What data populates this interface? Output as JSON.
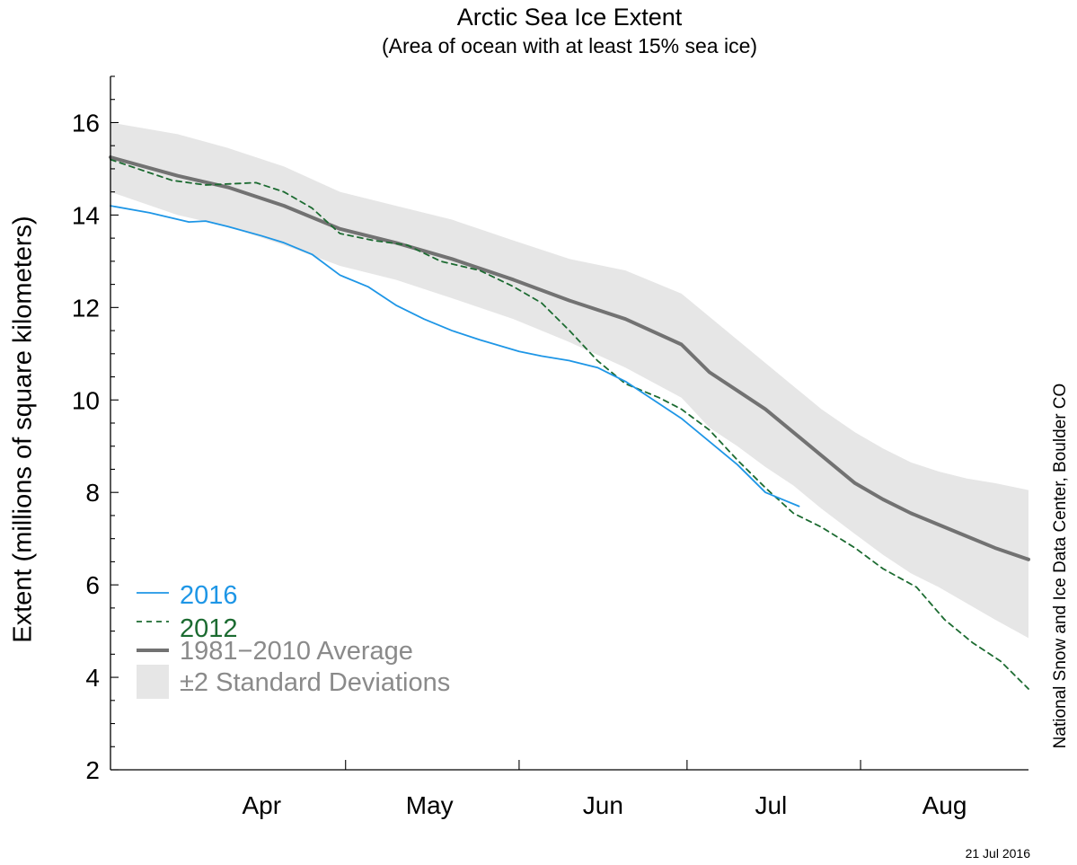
{
  "chart_data": {
    "type": "line",
    "title": "Arctic Sea Ice Extent",
    "subtitle": "(Area of ocean with at least 15% sea ice)",
    "ylabel": "Extent (millions of square kilometers)",
    "xlabel": "",
    "ylim": [
      2,
      17
    ],
    "y_ticks": [
      2,
      4,
      6,
      8,
      10,
      12,
      14,
      16
    ],
    "x_start": "2016-03-20",
    "x_end": "2016-08-31",
    "month_labels": [
      {
        "label": "Apr",
        "date": "2016-04-16"
      },
      {
        "label": "May",
        "date": "2016-05-16"
      },
      {
        "label": "Jun",
        "date": "2016-06-16"
      },
      {
        "label": "Jul",
        "date": "2016-07-16"
      },
      {
        "label": "Aug",
        "date": "2016-08-16"
      }
    ],
    "month_boundaries": [
      "2016-05-01",
      "2016-06-01",
      "2016-07-01",
      "2016-08-01"
    ],
    "grid": false,
    "legend_position": "bottom-left",
    "series": [
      {
        "name": "2016",
        "style": "solid",
        "color": "#1e96e6",
        "x": [
          "2016-03-20",
          "2016-03-27",
          "2016-04-03",
          "2016-04-06",
          "2016-04-10",
          "2016-04-16",
          "2016-04-20",
          "2016-04-25",
          "2016-04-30",
          "2016-05-05",
          "2016-05-10",
          "2016-05-15",
          "2016-05-20",
          "2016-05-25",
          "2016-06-01",
          "2016-06-05",
          "2016-06-10",
          "2016-06-15",
          "2016-06-20",
          "2016-06-25",
          "2016-06-30",
          "2016-07-05",
          "2016-07-10",
          "2016-07-15",
          "2016-07-18",
          "2016-07-21"
        ],
        "y": [
          14.2,
          14.05,
          13.85,
          13.87,
          13.75,
          13.55,
          13.4,
          13.15,
          12.7,
          12.45,
          12.05,
          11.75,
          11.5,
          11.3,
          11.05,
          10.95,
          10.85,
          10.7,
          10.4,
          10.0,
          9.6,
          9.1,
          8.6,
          8.0,
          7.85,
          7.7
        ]
      },
      {
        "name": "2012",
        "style": "dashed",
        "color": "#1c6b31",
        "x": [
          "2016-03-20",
          "2016-03-31",
          "2016-04-06",
          "2016-04-15",
          "2016-04-20",
          "2016-04-25",
          "2016-04-30",
          "2016-05-06",
          "2016-05-12",
          "2016-05-18",
          "2016-05-25",
          "2016-05-31",
          "2016-06-05",
          "2016-06-10",
          "2016-06-15",
          "2016-06-20",
          "2016-06-26",
          "2016-06-30",
          "2016-07-05",
          "2016-07-10",
          "2016-07-15",
          "2016-07-20",
          "2016-07-25",
          "2016-07-31",
          "2016-08-05",
          "2016-08-11",
          "2016-08-16",
          "2016-08-21",
          "2016-08-26",
          "2016-08-31"
        ],
        "y": [
          15.2,
          14.75,
          14.65,
          14.7,
          14.5,
          14.15,
          13.6,
          13.45,
          13.35,
          13.0,
          12.8,
          12.45,
          12.1,
          11.5,
          10.85,
          10.35,
          10.05,
          9.8,
          9.35,
          8.7,
          8.1,
          7.55,
          7.25,
          6.8,
          6.35,
          5.95,
          5.25,
          4.75,
          4.35,
          3.75
        ]
      },
      {
        "name": "1981−2010 Average",
        "style": "thick",
        "color": "#727272",
        "x": [
          "2016-03-20",
          "2016-04-01",
          "2016-04-10",
          "2016-04-20",
          "2016-04-30",
          "2016-05-10",
          "2016-05-20",
          "2016-05-31",
          "2016-06-10",
          "2016-06-20",
          "2016-06-30",
          "2016-07-05",
          "2016-07-10",
          "2016-07-15",
          "2016-07-20",
          "2016-07-25",
          "2016-07-31",
          "2016-08-05",
          "2016-08-10",
          "2016-08-15",
          "2016-08-20",
          "2016-08-25",
          "2016-08-31"
        ],
        "y": [
          15.25,
          14.85,
          14.6,
          14.2,
          13.7,
          13.4,
          13.05,
          12.6,
          12.15,
          11.75,
          11.2,
          10.6,
          10.2,
          9.8,
          9.3,
          8.8,
          8.2,
          7.85,
          7.55,
          7.3,
          7.05,
          6.8,
          6.55
        ]
      }
    ],
    "band": {
      "name": "±2 Standard Deviations",
      "color": "#e6e6e6",
      "x": [
        "2016-03-20",
        "2016-04-01",
        "2016-04-10",
        "2016-04-20",
        "2016-04-30",
        "2016-05-10",
        "2016-05-20",
        "2016-05-31",
        "2016-06-10",
        "2016-06-20",
        "2016-06-30",
        "2016-07-05",
        "2016-07-10",
        "2016-07-15",
        "2016-07-20",
        "2016-07-25",
        "2016-07-31",
        "2016-08-05",
        "2016-08-10",
        "2016-08-15",
        "2016-08-20",
        "2016-08-25",
        "2016-08-31"
      ],
      "upper": [
        16.0,
        15.75,
        15.45,
        15.05,
        14.5,
        14.2,
        13.9,
        13.45,
        13.05,
        12.8,
        12.3,
        11.8,
        11.3,
        10.8,
        10.3,
        9.8,
        9.3,
        8.95,
        8.65,
        8.45,
        8.3,
        8.2,
        8.05
      ],
      "lower": [
        14.5,
        14.0,
        13.75,
        13.35,
        12.9,
        12.6,
        12.2,
        11.75,
        11.25,
        10.7,
        10.05,
        9.4,
        9.0,
        8.55,
        8.15,
        7.65,
        7.1,
        6.65,
        6.25,
        5.95,
        5.6,
        5.25,
        4.85
      ]
    }
  },
  "date_stamp": "21 Jul 2016",
  "source_text": "National Snow and Ice Data Center, Boulder CO"
}
